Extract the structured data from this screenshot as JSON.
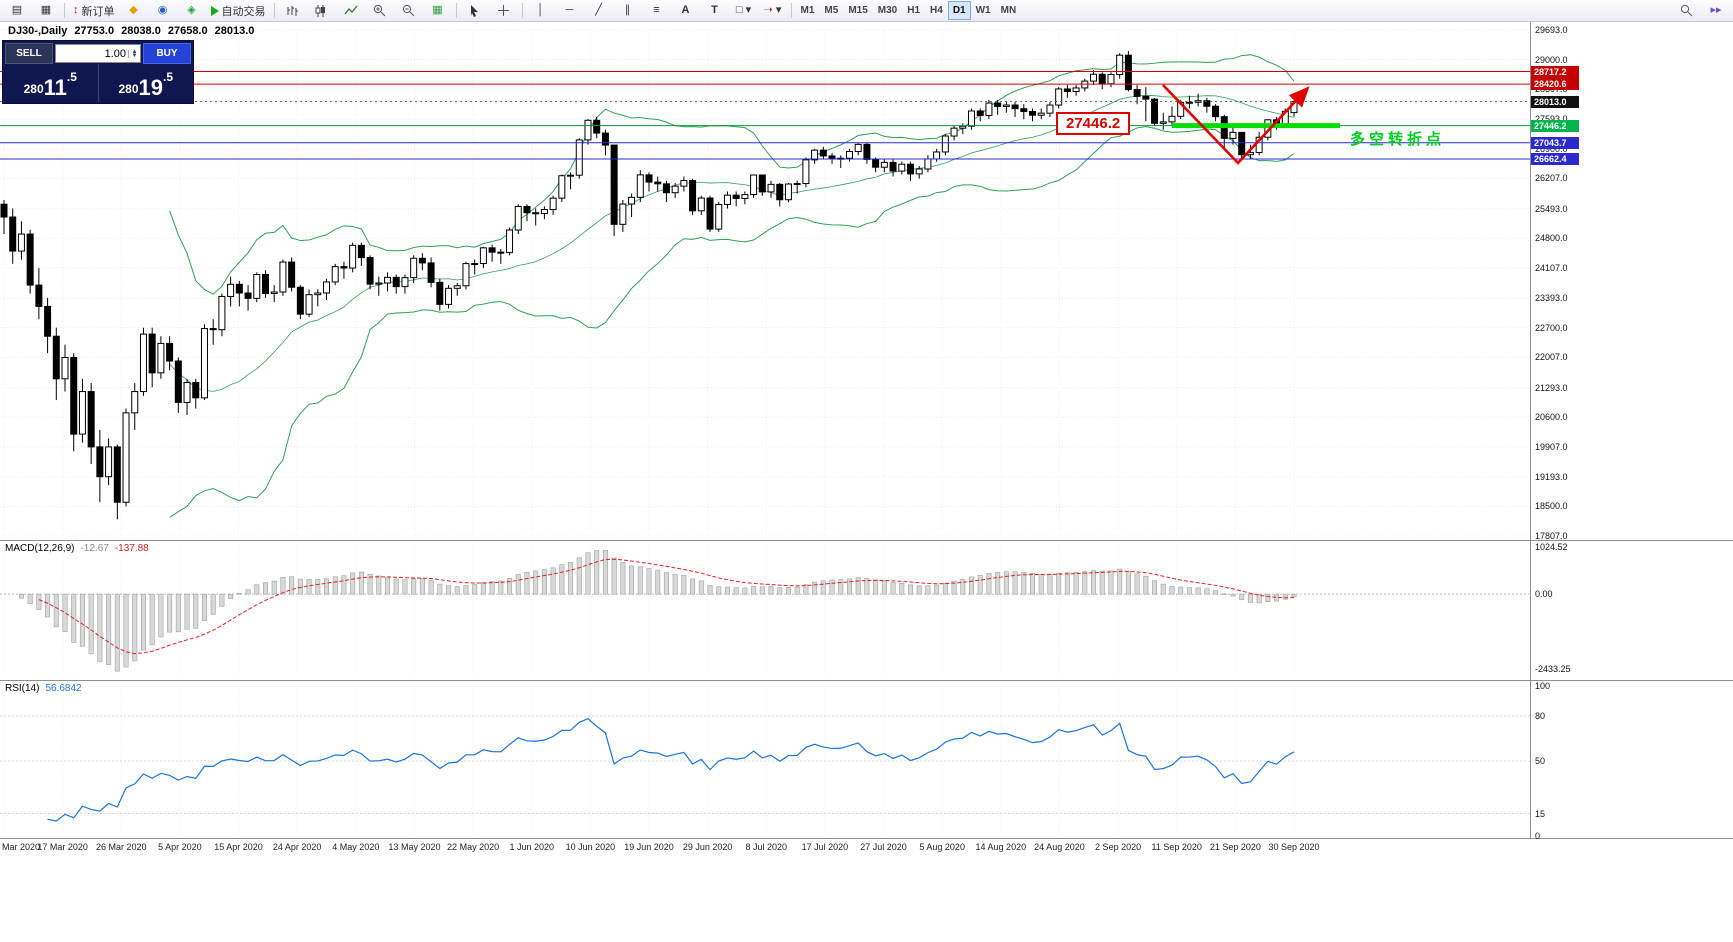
{
  "toolbar": {
    "new_order_label": "新订单",
    "autotrade_label": "自动交易",
    "timeframes": [
      "M1",
      "M5",
      "M15",
      "M30",
      "H1",
      "H4",
      "D1",
      "W1",
      "MN"
    ],
    "active_timeframe": "D1"
  },
  "trade_panel": {
    "sell_label": "SELL",
    "buy_label": "BUY",
    "volume": "1.00",
    "bid": "28011.5",
    "ask": "28019.5"
  },
  "chart": {
    "symbol": "DJ30-,Daily",
    "open": "27753.0",
    "high": "28038.0",
    "low": "27658.0",
    "close": "28013.0",
    "price_axis_ticks": [
      "29693.0",
      "29000.0",
      "28307.0",
      "27593.0",
      "26900.0",
      "26207.0",
      "25493.0",
      "24800.0",
      "24107.0",
      "23393.0",
      "22700.0",
      "22007.0",
      "21293.0",
      "20600.0",
      "19907.0",
      "19193.0",
      "18500.0",
      "17807.0"
    ],
    "badges": [
      {
        "text": "28717.2",
        "price": 28717.2,
        "color": "#c40000"
      },
      {
        "text": "28420.6",
        "price": 28420.6,
        "color": "#c40000"
      },
      {
        "text": "28013.0",
        "price": 28013.0,
        "color": "#111111"
      },
      {
        "text": "27446.2",
        "price": 27446.2,
        "color": "#00b44b"
      },
      {
        "text": "27043.7",
        "price": 27043.7,
        "color": "#2a2ad0"
      },
      {
        "text": "26662.4",
        "price": 26662.4,
        "color": "#2a2ad0"
      }
    ],
    "level_lines": [
      {
        "price": 28717.2,
        "color": "#cc0000",
        "style": "solid"
      },
      {
        "price": 28420.6,
        "color": "#cc0000",
        "style": "solid"
      },
      {
        "price": 28013.0,
        "color": "#666666",
        "style": "dotted"
      },
      {
        "price": 27446.2,
        "color": "#009933",
        "style": "solid"
      },
      {
        "price": 27043.7,
        "color": "#2a2ad0",
        "style": "solid"
      },
      {
        "price": 26662.4,
        "color": "#2a2ad0",
        "style": "solid"
      }
    ],
    "annotations": {
      "price_tag": "27446.2",
      "note_cn": "多空转折点",
      "support_segment_price": 27446.2
    },
    "dates": [
      "Mar 2020",
      "17 Mar 2020",
      "26 Mar 2020",
      "5 Apr 2020",
      "15 Apr 2020",
      "24 Apr 2020",
      "4 May 2020",
      "13 May 2020",
      "22 May 2020",
      "1 Jun 2020",
      "10 Jun 2020",
      "19 Jun 2020",
      "29 Jun 2020",
      "8 Jul 2020",
      "17 Jul 2020",
      "27 Jul 2020",
      "5 Aug 2020",
      "14 Aug 2020",
      "24 Aug 2020",
      "2 Sep 2020",
      "11 Sep 2020",
      "21 Sep 2020",
      "30 Sep 2020"
    ]
  },
  "macd": {
    "name": "MACD(12,26,9)",
    "value_main": "-12.67",
    "value_signal": "-137.88",
    "axis_top": "1024.52",
    "axis_zero": "0.00",
    "axis_bottom": "-2433.25"
  },
  "rsi": {
    "name": "RSI(14)",
    "value": "56.6842",
    "axis": [
      100,
      80,
      50,
      15,
      0
    ],
    "levels": [
      80,
      50,
      15
    ]
  },
  "chart_data": {
    "type": "candlestick",
    "title": "DJ30 Daily (Dow Jones), Mar 2020 - Sep 2020",
    "price_range": [
      17807.0,
      29693.0
    ],
    "indicators": [
      "Bollinger Bands(20,2)",
      "MACD(12,26,9)",
      "RSI(14)"
    ],
    "horizontal_levels": [
      28717.2,
      28420.6,
      28013.0,
      27446.2,
      27043.7,
      26662.4
    ],
    "candles_ohlc": [
      [
        25600,
        25700,
        24900,
        25300
      ],
      [
        25300,
        25500,
        24200,
        24500
      ],
      [
        24500,
        25200,
        24300,
        24900
      ],
      [
        24900,
        25000,
        23500,
        23700
      ],
      [
        23700,
        24100,
        22900,
        23200
      ],
      [
        23200,
        23400,
        22100,
        22500
      ],
      [
        22500,
        22700,
        21000,
        21500
      ],
      [
        21500,
        22300,
        21200,
        22000
      ],
      [
        22000,
        22100,
        19800,
        20200
      ],
      [
        20200,
        21500,
        20000,
        21200
      ],
      [
        21200,
        21400,
        19500,
        19900
      ],
      [
        19900,
        20300,
        18600,
        19200
      ],
      [
        19200,
        20100,
        19000,
        19900
      ],
      [
        19900,
        19950,
        18200,
        18600
      ],
      [
        18600,
        20800,
        18500,
        20700
      ],
      [
        20700,
        21400,
        20300,
        21200
      ],
      [
        21200,
        22700,
        21100,
        22550
      ],
      [
        22550,
        22700,
        21300,
        21640
      ],
      [
        21640,
        22500,
        21500,
        22330
      ],
      [
        22330,
        22500,
        21700,
        21917
      ],
      [
        21917,
        22000,
        20700,
        20944
      ],
      [
        20944,
        21500,
        20650,
        21413
      ],
      [
        21413,
        21500,
        20800,
        21053
      ],
      [
        21053,
        22780,
        21000,
        22680
      ],
      [
        22680,
        22900,
        22300,
        22654
      ],
      [
        22654,
        23500,
        22500,
        23434
      ],
      [
        23434,
        23900,
        23200,
        23719
      ],
      [
        23719,
        23800,
        23200,
        23515
      ],
      [
        23515,
        23700,
        23100,
        23390
      ],
      [
        23390,
        24000,
        23300,
        23950
      ],
      [
        23950,
        24050,
        23400,
        23504
      ],
      [
        23504,
        23700,
        23300,
        23538
      ],
      [
        23538,
        24300,
        23450,
        24242
      ],
      [
        24242,
        24350,
        23550,
        23650
      ],
      [
        23650,
        23700,
        22900,
        23018
      ],
      [
        23018,
        23600,
        22950,
        23476
      ],
      [
        23476,
        23600,
        23200,
        23515
      ],
      [
        23515,
        23850,
        23350,
        23775
      ],
      [
        23775,
        24200,
        23700,
        24134
      ],
      [
        24134,
        24250,
        23850,
        24102
      ],
      [
        24102,
        24700,
        24000,
        24634
      ],
      [
        24634,
        24700,
        24150,
        24346
      ],
      [
        24346,
        24400,
        23600,
        23724
      ],
      [
        23724,
        23900,
        23450,
        23750
      ],
      [
        23750,
        24000,
        23550,
        23883
      ],
      [
        23883,
        23950,
        23500,
        23665
      ],
      [
        23665,
        23950,
        23500,
        23876
      ],
      [
        23876,
        24400,
        23750,
        24331
      ],
      [
        24331,
        24450,
        24050,
        24222
      ],
      [
        24222,
        24350,
        23650,
        23765
      ],
      [
        23765,
        23850,
        23100,
        23248
      ],
      [
        23248,
        23700,
        23150,
        23625
      ],
      [
        23625,
        23750,
        23450,
        23685
      ],
      [
        23685,
        24250,
        23600,
        24206
      ],
      [
        24206,
        24300,
        23950,
        24207
      ],
      [
        24207,
        24600,
        24100,
        24576
      ],
      [
        24576,
        24650,
        24250,
        24474
      ],
      [
        24474,
        24550,
        24200,
        24465
      ],
      [
        24465,
        25050,
        24400,
        24995
      ],
      [
        24995,
        25600,
        24900,
        25548
      ],
      [
        25548,
        25600,
        25200,
        25401
      ],
      [
        25401,
        25500,
        25100,
        25383
      ],
      [
        25383,
        25550,
        25250,
        25475
      ],
      [
        25475,
        25800,
        25350,
        25743
      ],
      [
        25743,
        26300,
        25650,
        26270
      ],
      [
        26270,
        26350,
        25950,
        26282
      ],
      [
        26282,
        27150,
        26200,
        27111
      ],
      [
        27111,
        27600,
        27000,
        27572
      ],
      [
        27572,
        27650,
        27150,
        27272
      ],
      [
        27272,
        27350,
        26750,
        26990
      ],
      [
        26990,
        27000,
        24850,
        25128
      ],
      [
        25128,
        25700,
        24950,
        25605
      ],
      [
        25605,
        25850,
        25300,
        25763
      ],
      [
        25763,
        26400,
        25650,
        26290
      ],
      [
        26290,
        26350,
        25900,
        26120
      ],
      [
        26120,
        26250,
        25900,
        26080
      ],
      [
        26080,
        26150,
        25650,
        25871
      ],
      [
        25871,
        26100,
        25750,
        26025
      ],
      [
        26025,
        26250,
        25900,
        26156
      ],
      [
        26156,
        26200,
        25350,
        25446
      ],
      [
        25446,
        25800,
        25350,
        25746
      ],
      [
        25746,
        25800,
        24950,
        25016
      ],
      [
        25016,
        25650,
        24950,
        25596
      ],
      [
        25596,
        25900,
        25500,
        25813
      ],
      [
        25813,
        25900,
        25550,
        25735
      ],
      [
        25735,
        25900,
        25600,
        25827
      ],
      [
        25827,
        26300,
        25750,
        26287
      ],
      [
        26287,
        26300,
        25800,
        25890
      ],
      [
        25890,
        26150,
        25750,
        26067
      ],
      [
        26067,
        26100,
        25550,
        25706
      ],
      [
        25706,
        26100,
        25650,
        26075
      ],
      [
        26075,
        26150,
        25850,
        26086
      ],
      [
        26086,
        26700,
        26000,
        26643
      ],
      [
        26643,
        26900,
        26550,
        26870
      ],
      [
        26870,
        26950,
        26650,
        26735
      ],
      [
        26735,
        26800,
        26550,
        26672
      ],
      [
        26672,
        26750,
        26450,
        26681
      ],
      [
        26681,
        26900,
        26600,
        26840
      ],
      [
        26840,
        27050,
        26750,
        27006
      ],
      [
        27006,
        27050,
        26550,
        26652
      ],
      [
        26652,
        26700,
        26350,
        26470
      ],
      [
        26470,
        26650,
        26350,
        26584
      ],
      [
        26584,
        26650,
        26250,
        26379
      ],
      [
        26379,
        26600,
        26300,
        26540
      ],
      [
        26540,
        26600,
        26150,
        26313
      ],
      [
        26313,
        26500,
        26200,
        26428
      ],
      [
        26428,
        26750,
        26350,
        26664
      ],
      [
        26664,
        26900,
        26600,
        26828
      ],
      [
        26828,
        27250,
        26750,
        27202
      ],
      [
        27202,
        27450,
        27100,
        27387
      ],
      [
        27387,
        27500,
        27250,
        27433
      ],
      [
        27433,
        27850,
        27350,
        27791
      ],
      [
        27791,
        27850,
        27550,
        27686
      ],
      [
        27686,
        28050,
        27600,
        27977
      ],
      [
        27977,
        28050,
        27700,
        27897
      ],
      [
        27897,
        28000,
        27750,
        27931
      ],
      [
        27931,
        28000,
        27650,
        27845
      ],
      [
        27845,
        27950,
        27600,
        27778
      ],
      [
        27778,
        27850,
        27550,
        27692
      ],
      [
        27692,
        27850,
        27600,
        27740
      ],
      [
        27740,
        28000,
        27650,
        27930
      ],
      [
        27930,
        28350,
        27850,
        28308
      ],
      [
        28308,
        28400,
        28100,
        28248
      ],
      [
        28248,
        28400,
        28150,
        28332
      ],
      [
        28332,
        28550,
        28250,
        28492
      ],
      [
        28492,
        28750,
        28400,
        28654
      ],
      [
        28654,
        28700,
        28300,
        28430
      ],
      [
        28430,
        28700,
        28350,
        28646
      ],
      [
        28646,
        29150,
        28550,
        29101
      ],
      [
        29101,
        29200,
        28250,
        28293
      ],
      [
        28293,
        28400,
        27950,
        28133
      ],
      [
        28133,
        28350,
        27550,
        28069
      ],
      [
        28069,
        28100,
        27450,
        27501
      ],
      [
        27501,
        27750,
        27350,
        27535
      ],
      [
        27535,
        27900,
        27450,
        27666
      ],
      [
        27666,
        28050,
        27600,
        27993
      ],
      [
        27993,
        28150,
        27850,
        27996
      ],
      [
        27996,
        28200,
        27900,
        28032
      ],
      [
        28032,
        28100,
        27750,
        27902
      ],
      [
        27902,
        27950,
        27550,
        27657
      ],
      [
        27657,
        27700,
        26900,
        27148
      ],
      [
        27148,
        27400,
        27000,
        27288
      ],
      [
        27288,
        27300,
        26660,
        26763
      ],
      [
        26763,
        27000,
        26650,
        26815
      ],
      [
        26815,
        27300,
        26750,
        27174
      ],
      [
        27174,
        27600,
        27100,
        27584
      ],
      [
        27584,
        27650,
        27350,
        27453
      ],
      [
        27453,
        27850,
        27400,
        27782
      ],
      [
        27753,
        28038,
        27658,
        28013
      ]
    ]
  }
}
